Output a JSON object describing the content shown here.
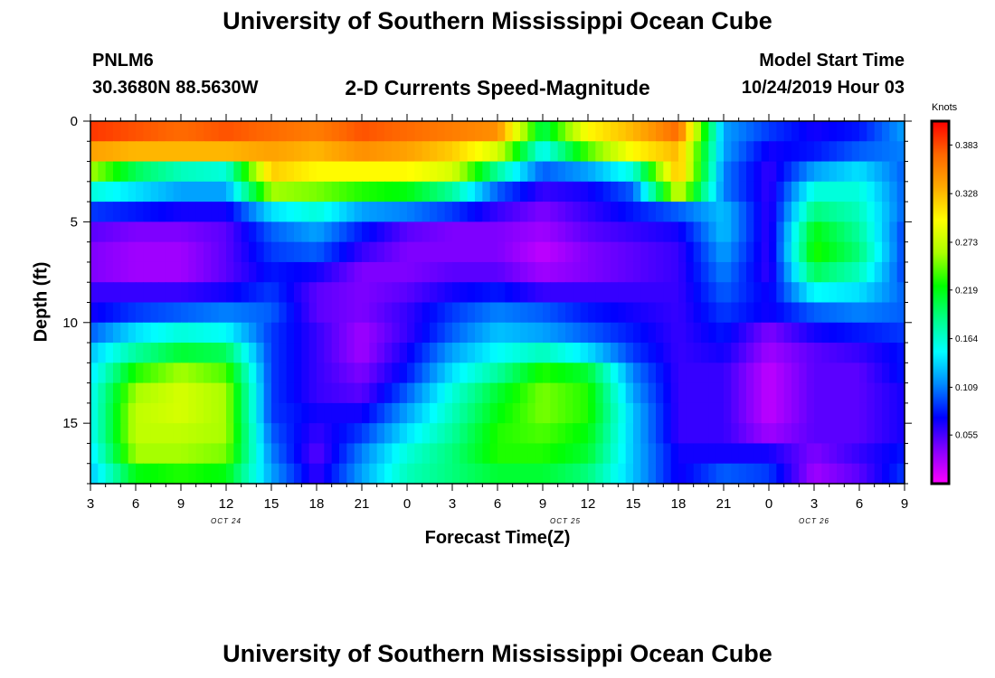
{
  "header": {
    "title": "University of Southern Mississippi Ocean Cube",
    "station_id": "PNLM6",
    "station_coords": "30.3680N 88.5630W",
    "subtitle": "2-D Currents Speed-Magnitude",
    "model_start_label": "Model Start Time",
    "model_start_time": "10/24/2019 Hour 03"
  },
  "footer": {
    "title": "University of Southern Mississippi Ocean Cube"
  },
  "chart_data": {
    "type": "heatmap",
    "title": "2-D Currents Speed-Magnitude",
    "xlabel": "Forecast Time(Z)",
    "ylabel": "Depth (ft)",
    "x_hours_range": [
      0,
      54
    ],
    "x_ticks": [
      {
        "hour": 0,
        "label": "3"
      },
      {
        "hour": 3,
        "label": "6"
      },
      {
        "hour": 6,
        "label": "9"
      },
      {
        "hour": 9,
        "label": "12"
      },
      {
        "hour": 12,
        "label": "15"
      },
      {
        "hour": 15,
        "label": "18"
      },
      {
        "hour": 18,
        "label": "21"
      },
      {
        "hour": 21,
        "label": "0"
      },
      {
        "hour": 24,
        "label": "3"
      },
      {
        "hour": 27,
        "label": "6"
      },
      {
        "hour": 30,
        "label": "9"
      },
      {
        "hour": 33,
        "label": "12"
      },
      {
        "hour": 36,
        "label": "15"
      },
      {
        "hour": 39,
        "label": "18"
      },
      {
        "hour": 42,
        "label": "21"
      },
      {
        "hour": 45,
        "label": "0"
      },
      {
        "hour": 48,
        "label": "3"
      },
      {
        "hour": 51,
        "label": "6"
      },
      {
        "hour": 54,
        "label": "9"
      }
    ],
    "date_labels": [
      {
        "hour": 9,
        "label": "OCT 24"
      },
      {
        "hour": 31.5,
        "label": "OCT 25"
      },
      {
        "hour": 48,
        "label": "OCT 26"
      }
    ],
    "ylim": [
      0,
      18
    ],
    "y_ticks": [
      0,
      5,
      10,
      15
    ],
    "colorbar": {
      "unit": "Knots",
      "min": 0.0,
      "max": 0.41,
      "ticks": [
        0.055,
        0.109,
        0.164,
        0.219,
        0.273,
        0.328,
        0.383
      ],
      "tick_labels": [
        "0.055",
        "0.109",
        "0.164",
        "0.219",
        "0.273",
        "0.328",
        "0.383"
      ],
      "colors": [
        "#ff00ff",
        "#8800ff",
        "#0000ff",
        "#0088ff",
        "#00ffff",
        "#00ff88",
        "#00ff00",
        "#aaff00",
        "#ffff00",
        "#ffaa00",
        "#ff6600",
        "#ff0000"
      ]
    },
    "depths": [
      0.5,
      1.5,
      2.5,
      3.5,
      4.5,
      5.5,
      6.5,
      7.5,
      8.5,
      9.5,
      10.5,
      11.5,
      12.5,
      13.5,
      14.5,
      15.5,
      16.5,
      17.5
    ],
    "times": [
      0,
      3,
      6,
      9,
      12,
      15,
      18,
      21,
      24,
      27,
      30,
      33,
      36,
      39,
      42,
      45,
      48,
      51,
      54
    ],
    "values": [
      [
        0.39,
        0.38,
        0.37,
        0.38,
        0.37,
        0.36,
        0.38,
        0.37,
        0.36,
        0.35,
        0.2,
        0.3,
        0.33,
        0.37,
        0.12,
        0.09,
        0.07,
        0.08,
        0.12
      ],
      [
        0.34,
        0.33,
        0.33,
        0.33,
        0.34,
        0.33,
        0.35,
        0.34,
        0.32,
        0.28,
        0.15,
        0.24,
        0.3,
        0.33,
        0.12,
        0.07,
        0.08,
        0.1,
        0.11
      ],
      [
        0.26,
        0.2,
        0.17,
        0.16,
        0.32,
        0.3,
        0.3,
        0.3,
        0.28,
        0.18,
        0.1,
        0.12,
        0.16,
        0.33,
        0.11,
        0.06,
        0.12,
        0.14,
        0.1
      ],
      [
        0.16,
        0.14,
        0.12,
        0.12,
        0.26,
        0.25,
        0.23,
        0.22,
        0.18,
        0.1,
        0.06,
        0.07,
        0.1,
        0.28,
        0.11,
        0.06,
        0.16,
        0.16,
        0.1
      ],
      [
        0.09,
        0.08,
        0.07,
        0.07,
        0.14,
        0.16,
        0.12,
        0.11,
        0.09,
        0.06,
        0.04,
        0.06,
        0.08,
        0.1,
        0.13,
        0.06,
        0.19,
        0.17,
        0.1
      ],
      [
        0.05,
        0.04,
        0.04,
        0.05,
        0.1,
        0.12,
        0.08,
        0.05,
        0.04,
        0.04,
        0.03,
        0.05,
        0.06,
        0.07,
        0.13,
        0.06,
        0.22,
        0.18,
        0.09
      ],
      [
        0.04,
        0.03,
        0.03,
        0.05,
        0.09,
        0.1,
        0.06,
        0.04,
        0.04,
        0.04,
        0.02,
        0.04,
        0.05,
        0.06,
        0.12,
        0.06,
        0.23,
        0.19,
        0.09
      ],
      [
        0.04,
        0.03,
        0.03,
        0.05,
        0.08,
        0.07,
        0.04,
        0.04,
        0.05,
        0.05,
        0.03,
        0.04,
        0.05,
        0.06,
        0.11,
        0.06,
        0.2,
        0.17,
        0.09
      ],
      [
        0.06,
        0.06,
        0.06,
        0.07,
        0.09,
        0.05,
        0.04,
        0.05,
        0.07,
        0.08,
        0.06,
        0.06,
        0.06,
        0.06,
        0.1,
        0.07,
        0.15,
        0.14,
        0.1
      ],
      [
        0.07,
        0.09,
        0.1,
        0.11,
        0.1,
        0.05,
        0.04,
        0.06,
        0.09,
        0.11,
        0.1,
        0.08,
        0.07,
        0.06,
        0.09,
        0.07,
        0.1,
        0.11,
        0.1
      ],
      [
        0.1,
        0.14,
        0.16,
        0.15,
        0.09,
        0.06,
        0.03,
        0.06,
        0.1,
        0.13,
        0.12,
        0.1,
        0.08,
        0.06,
        0.08,
        0.04,
        0.07,
        0.08,
        0.09
      ],
      [
        0.13,
        0.18,
        0.21,
        0.2,
        0.09,
        0.06,
        0.03,
        0.07,
        0.12,
        0.15,
        0.17,
        0.14,
        0.09,
        0.06,
        0.07,
        0.03,
        0.05,
        0.06,
        0.08
      ],
      [
        0.14,
        0.23,
        0.26,
        0.24,
        0.09,
        0.06,
        0.04,
        0.08,
        0.14,
        0.18,
        0.23,
        0.21,
        0.11,
        0.06,
        0.06,
        0.02,
        0.05,
        0.05,
        0.08
      ],
      [
        0.15,
        0.26,
        0.28,
        0.26,
        0.09,
        0.06,
        0.05,
        0.1,
        0.16,
        0.21,
        0.25,
        0.23,
        0.12,
        0.06,
        0.06,
        0.02,
        0.05,
        0.05,
        0.07
      ],
      [
        0.15,
        0.27,
        0.28,
        0.26,
        0.09,
        0.07,
        0.07,
        0.12,
        0.17,
        0.22,
        0.25,
        0.23,
        0.13,
        0.06,
        0.06,
        0.02,
        0.05,
        0.05,
        0.07
      ],
      [
        0.15,
        0.27,
        0.27,
        0.26,
        0.1,
        0.06,
        0.09,
        0.14,
        0.18,
        0.23,
        0.24,
        0.22,
        0.13,
        0.06,
        0.06,
        0.03,
        0.05,
        0.05,
        0.07
      ],
      [
        0.14,
        0.26,
        0.26,
        0.25,
        0.11,
        0.05,
        0.11,
        0.16,
        0.19,
        0.23,
        0.23,
        0.21,
        0.13,
        0.07,
        0.07,
        0.07,
        0.04,
        0.06,
        0.08
      ],
      [
        0.13,
        0.22,
        0.23,
        0.22,
        0.12,
        0.06,
        0.12,
        0.17,
        0.19,
        0.21,
        0.21,
        0.19,
        0.13,
        0.07,
        0.1,
        0.09,
        0.03,
        0.05,
        0.09
      ]
    ]
  }
}
